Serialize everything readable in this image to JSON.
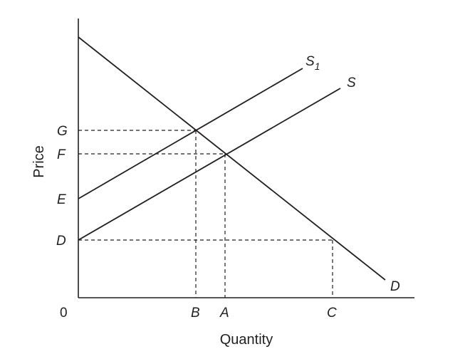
{
  "axes": {
    "x_title": "Quantity",
    "y_title": "Price",
    "origin": "0",
    "x_ticks": [
      "B",
      "A",
      "C"
    ],
    "y_ticks": [
      "G",
      "F",
      "E",
      "D"
    ]
  },
  "curves": {
    "demand": "D",
    "supply": "S",
    "supply_shifted": {
      "main": "S",
      "sub": "1"
    }
  },
  "colors": {
    "ink": "#231f20",
    "background": "#ffffff"
  }
}
